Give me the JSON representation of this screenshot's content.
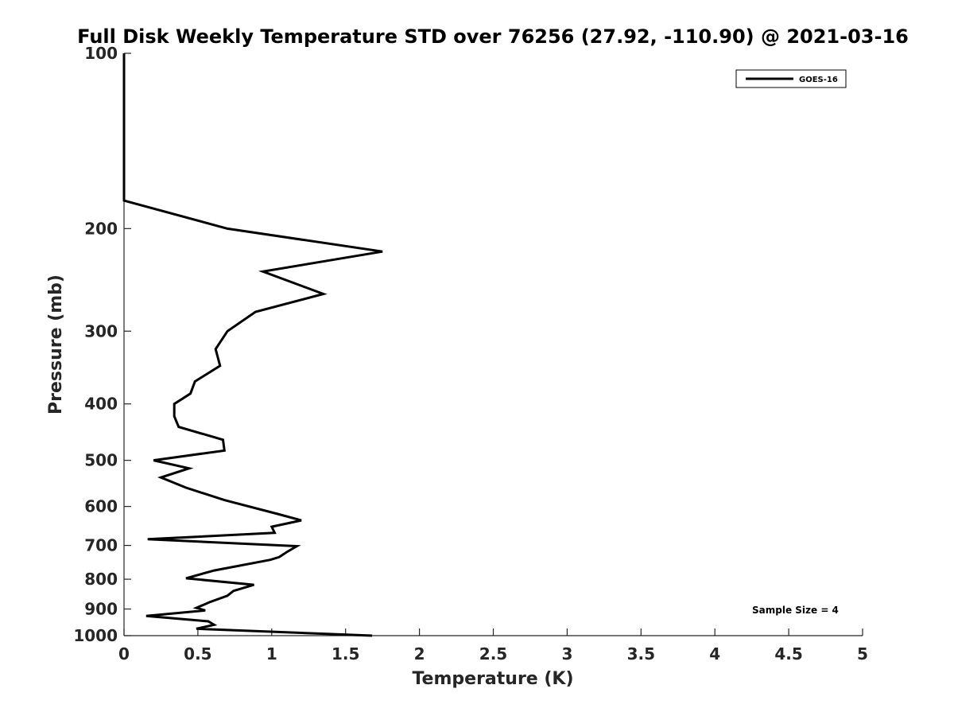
{
  "chart_data": {
    "type": "line",
    "title": "Full Disk Weekly Temperature STD over 76256 (27.92, -110.90) @ 2021-03-16",
    "xlabel": "Temperature (K)",
    "ylabel": "Pressure (mb)",
    "xlim": [
      0,
      5
    ],
    "ylim": [
      100,
      1000
    ],
    "y_scale": "log",
    "y_reversed": true,
    "x_ticks": [
      "0",
      "0.5",
      "1",
      "1.5",
      "2",
      "2.5",
      "3",
      "3.5",
      "4",
      "4.5",
      "5"
    ],
    "y_ticks": [
      "100",
      "200",
      "300",
      "400",
      "500",
      "600",
      "700",
      "800",
      "900",
      "1000"
    ],
    "grid": false,
    "legend": {
      "position": "top-right",
      "entries": [
        "GOES-16"
      ]
    },
    "annotation": "Sample Size = 4",
    "series": [
      {
        "name": "GOES-16",
        "color": "#000000",
        "points": [
          {
            "x": 0.0,
            "y": 100
          },
          {
            "x": 0.0,
            "y": 179
          },
          {
            "x": 0.7,
            "y": 200
          },
          {
            "x": 1.75,
            "y": 219
          },
          {
            "x": 0.94,
            "y": 237
          },
          {
            "x": 1.35,
            "y": 259
          },
          {
            "x": 0.89,
            "y": 278
          },
          {
            "x": 0.7,
            "y": 300
          },
          {
            "x": 0.62,
            "y": 322
          },
          {
            "x": 0.65,
            "y": 344
          },
          {
            "x": 0.48,
            "y": 366
          },
          {
            "x": 0.45,
            "y": 384
          },
          {
            "x": 0.34,
            "y": 400
          },
          {
            "x": 0.34,
            "y": 420
          },
          {
            "x": 0.37,
            "y": 438
          },
          {
            "x": 0.67,
            "y": 461
          },
          {
            "x": 0.68,
            "y": 481
          },
          {
            "x": 0.2,
            "y": 500
          },
          {
            "x": 0.44,
            "y": 516
          },
          {
            "x": 0.25,
            "y": 535
          },
          {
            "x": 0.42,
            "y": 557
          },
          {
            "x": 0.68,
            "y": 585
          },
          {
            "x": 1.04,
            "y": 618
          },
          {
            "x": 1.2,
            "y": 634
          },
          {
            "x": 1.0,
            "y": 650
          },
          {
            "x": 1.02,
            "y": 666
          },
          {
            "x": 0.16,
            "y": 683
          },
          {
            "x": 1.17,
            "y": 702
          },
          {
            "x": 1.1,
            "y": 719
          },
          {
            "x": 1.05,
            "y": 733
          },
          {
            "x": 0.99,
            "y": 741
          },
          {
            "x": 0.61,
            "y": 773
          },
          {
            "x": 0.42,
            "y": 797
          },
          {
            "x": 0.88,
            "y": 818
          },
          {
            "x": 0.74,
            "y": 838
          },
          {
            "x": 0.7,
            "y": 854
          },
          {
            "x": 0.58,
            "y": 876
          },
          {
            "x": 0.49,
            "y": 896
          },
          {
            "x": 0.55,
            "y": 905
          },
          {
            "x": 0.15,
            "y": 925
          },
          {
            "x": 0.57,
            "y": 945
          },
          {
            "x": 0.61,
            "y": 958
          },
          {
            "x": 0.49,
            "y": 973
          },
          {
            "x": 1.68,
            "y": 1000
          }
        ]
      }
    ]
  }
}
